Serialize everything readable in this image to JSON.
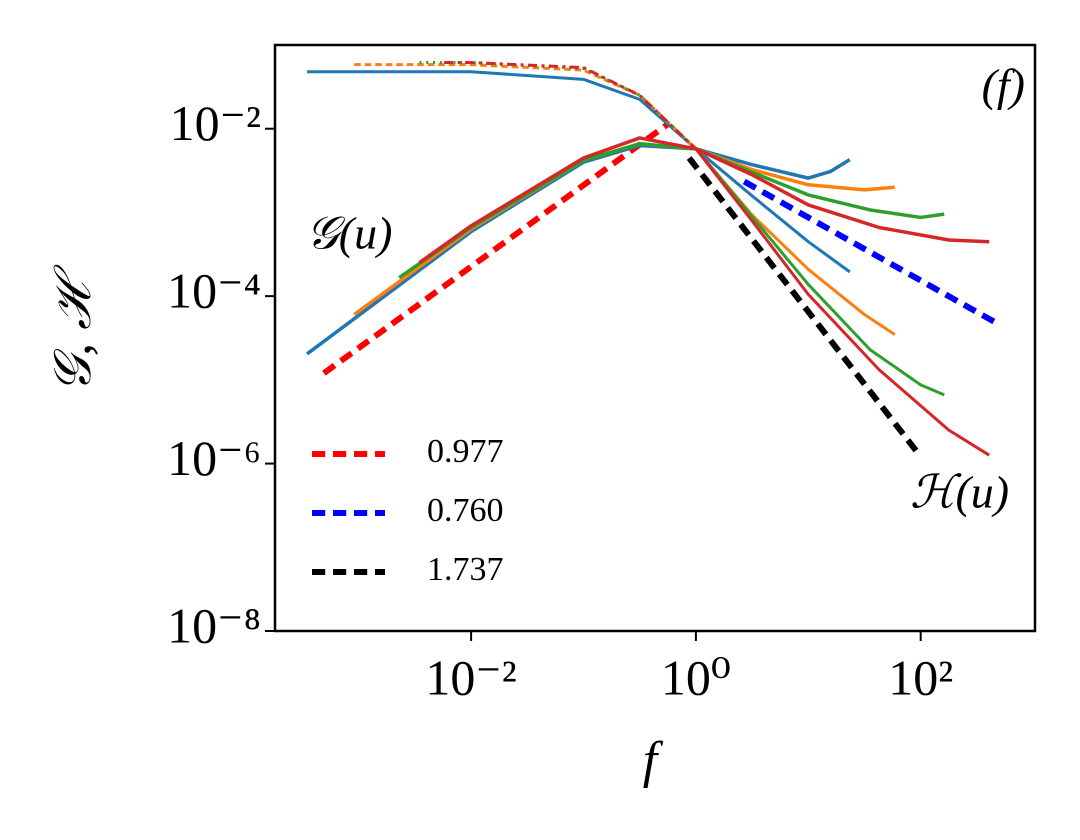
{
  "chart_data": {
    "type": "line",
    "xlog": true,
    "ylog": true,
    "xlabel": "f",
    "ylabel": "𝒢, ℋ",
    "annotations": [
      "(f)",
      "𝒢(u)",
      "ℋ(u)"
    ],
    "legend": "lower left",
    "xlim": [
      0.00018,
      1040
    ],
    "ylim": [
      1e-08,
      0.1
    ],
    "xticks": [
      {
        "value": 0.01,
        "label": "10⁻²"
      },
      {
        "value": 1,
        "label": "10⁰"
      },
      {
        "value": 100,
        "label": "10²"
      }
    ],
    "yticks": [
      {
        "value": 1e-08,
        "label": "10⁻⁸"
      },
      {
        "value": 1e-06,
        "label": "10⁻⁶"
      },
      {
        "value": 0.0001,
        "label": "10⁻⁴"
      },
      {
        "value": 0.01,
        "label": "10⁻²"
      }
    ],
    "series": [
      {
        "name": "0.977",
        "color": "#ff0000",
        "dash": "dashed",
        "width": 6,
        "x": [
          0.00049,
          0.556
        ],
        "values": [
          1.2e-05,
          0.0112
        ]
      },
      {
        "name": "0.760",
        "color": "#0000ff",
        "dash": "dashed",
        "width": 6,
        "x": [
          2.69,
          501
        ],
        "values": [
          0.00234,
          4.57e-05
        ]
      },
      {
        "name": "1.737",
        "color": "#000000",
        "dash": "dashed",
        "width": 6,
        "x": [
          0.871,
          97.7
        ],
        "values": [
          0.00447,
          1.26e-06
        ]
      },
      {
        "color": "#1f77b4",
        "dash": "solid",
        "width": 3.5,
        "x": [
          0.000347,
          0.01,
          0.1,
          0.316,
          1,
          3.16,
          10,
          15.8,
          23.4
        ],
        "values": [
          2.04e-05,
          0.000589,
          0.00398,
          0.00631,
          0.00575,
          0.00372,
          0.00257,
          0.00309,
          0.00427
        ]
      },
      {
        "color": "#1f77b4",
        "dash": "solid",
        "width": 3,
        "x": [
          0.000347,
          0.01,
          0.1,
          0.316,
          1,
          3.16,
          10,
          23.4
        ],
        "values": [
          0.0479,
          0.0479,
          0.0389,
          0.0224,
          0.00575,
          0.00158,
          0.000447,
          0.000195
        ]
      },
      {
        "color": "#ff7f0e",
        "dash": "solid",
        "width": 3.5,
        "x": [
          0.000912,
          0.01,
          0.1,
          0.316,
          1,
          3.16,
          10,
          31.6,
          58.9
        ],
        "values": [
          6.03e-05,
          0.000631,
          0.00417,
          0.00661,
          0.00575,
          0.00324,
          0.00214,
          0.00186,
          0.002
        ]
      },
      {
        "color": "#ff7f0e",
        "dash": "dashed",
        "width": 3,
        "x": [
          0.000912,
          0.01,
          0.1,
          0.316,
          1
        ],
        "values": [
          0.0582,
          0.0582,
          0.0501,
          0.0251,
          0.00575
        ]
      },
      {
        "color": "#ff7f0e",
        "dash": "solid",
        "width": 3,
        "x": [
          1,
          3.16,
          10,
          31.6,
          58.9
        ],
        "values": [
          0.00575,
          0.000933,
          0.000209,
          6.03e-05,
          3.47e-05
        ]
      },
      {
        "color": "#2ca02c",
        "dash": "solid",
        "width": 3.5,
        "x": [
          0.00229,
          0.01,
          0.1,
          0.316,
          1,
          3.16,
          10,
          35.5,
          100,
          162
        ],
        "values": [
          0.000166,
          0.000661,
          0.00417,
          0.00661,
          0.00575,
          0.00302,
          0.00162,
          0.00107,
          0.000871,
          0.000955
        ]
      },
      {
        "color": "#2ca02c",
        "dash": "dotted",
        "width": 3,
        "x": [
          0.00347,
          0.01,
          0.1,
          0.316,
          1
        ],
        "values": [
          0.0617,
          0.0617,
          0.0525,
          0.0251,
          0.00575
        ]
      },
      {
        "color": "#2ca02c",
        "dash": "solid",
        "width": 3,
        "x": [
          1,
          3.16,
          10,
          35.5,
          100,
          162
        ],
        "values": [
          0.00575,
          0.000891,
          0.000138,
          2.29e-05,
          8.71e-06,
          6.61e-06
        ]
      },
      {
        "color": "#d62728",
        "dash": "solid",
        "width": 3.5,
        "x": [
          0.00347,
          0.01,
          0.1,
          0.316,
          1,
          3.16,
          10,
          42.7,
          178,
          407
        ],
        "values": [
          0.000251,
          0.000692,
          0.00447,
          0.00776,
          0.00575,
          0.00282,
          0.00123,
          0.000661,
          0.000468,
          0.000447
        ]
      },
      {
        "color": "#d62728",
        "dash": "dashdot",
        "width": 3,
        "x": [
          0.00575,
          0.01,
          0.1,
          0.316,
          1
        ],
        "values": [
          0.0617,
          0.0617,
          0.0537,
          0.0251,
          0.00575
        ]
      },
      {
        "color": "#d62728",
        "dash": "solid",
        "width": 3,
        "x": [
          1,
          3.16,
          10,
          42.7,
          178,
          407
        ],
        "values": [
          0.00575,
          0.000794,
          0.000105,
          1.32e-05,
          2.51e-06,
          1.26e-06
        ]
      }
    ]
  }
}
